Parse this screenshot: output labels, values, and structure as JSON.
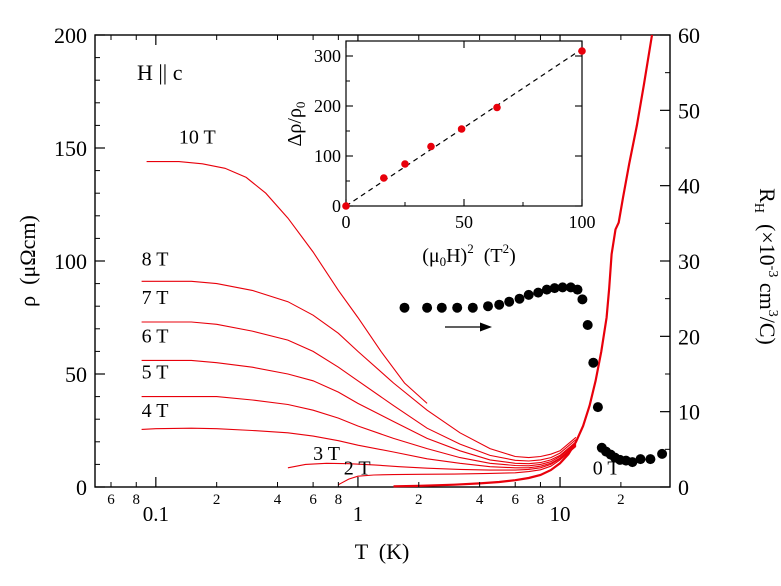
{
  "chart_data": {
    "type": "line",
    "condition": "H || c",
    "xlabel": "T  (K)",
    "ylabel": "ρ  (μΩcm)",
    "y2label": "R_H  (×10^-3 cm^3/C)",
    "xscale": "log",
    "xlim": [
      0.05,
      35
    ],
    "ylim": [
      0,
      200
    ],
    "y2lim": [
      0,
      60
    ],
    "xticks_major": [
      {
        "value": 0.1,
        "label": "0.1"
      },
      {
        "value": 1,
        "label": "1"
      },
      {
        "value": 10,
        "label": "10"
      }
    ],
    "xticks_minor": [
      {
        "value": 0.06,
        "label": "6"
      },
      {
        "value": 0.08,
        "label": "8"
      },
      {
        "value": 0.2,
        "label": "2"
      },
      {
        "value": 0.4,
        "label": "4"
      },
      {
        "value": 0.6,
        "label": "6"
      },
      {
        "value": 0.8,
        "label": "8"
      },
      {
        "value": 2,
        "label": "2"
      },
      {
        "value": 4,
        "label": "4"
      },
      {
        "value": 6,
        "label": "6"
      },
      {
        "value": 8,
        "label": "8"
      },
      {
        "value": 20,
        "label": "2"
      }
    ],
    "yticks": [
      0,
      50,
      100,
      150,
      200
    ],
    "y2ticks": [
      0,
      10,
      20,
      30,
      40,
      50,
      60
    ],
    "colors": {
      "resistivity": "#e8000b",
      "hall": "#000000",
      "inset_points": "#e8000b"
    },
    "resistivity_series": [
      {
        "name": "10 T",
        "label": "10 T",
        "label_at": [
          0.13,
          152
        ],
        "x": [
          0.09,
          0.1,
          0.13,
          0.17,
          0.22,
          0.28,
          0.35,
          0.45,
          0.6,
          0.8,
          1.0,
          1.3,
          1.7,
          2.2
        ],
        "y": [
          144,
          144,
          144,
          143,
          141,
          137,
          130,
          119,
          104,
          87,
          75,
          60,
          46,
          37
        ]
      },
      {
        "name": "8 T",
        "label": "8 T",
        "label_at": [
          0.085,
          98
        ],
        "x": [
          0.085,
          0.1,
          0.15,
          0.2,
          0.3,
          0.45,
          0.6,
          0.8,
          1.0,
          1.5,
          2.2,
          3.2,
          4.5,
          6,
          7,
          8,
          9,
          10,
          12
        ],
        "y": [
          91,
          91,
          91,
          90,
          87,
          82,
          76,
          68,
          60,
          46,
          34,
          24,
          17,
          13.5,
          13,
          13.5,
          14.5,
          16,
          22
        ]
      },
      {
        "name": "7 T",
        "label": "7 T",
        "label_at": [
          0.085,
          81
        ],
        "x": [
          0.085,
          0.1,
          0.15,
          0.2,
          0.3,
          0.45,
          0.6,
          0.8,
          1.0,
          1.5,
          2.2,
          3.2,
          4.5,
          6,
          7,
          8,
          9,
          10,
          12
        ],
        "y": [
          73,
          73,
          73,
          72,
          69,
          65,
          60,
          53,
          47,
          36,
          26,
          19,
          14,
          11.8,
          11.5,
          12,
          13,
          15,
          21
        ]
      },
      {
        "name": "6 T",
        "label": "6 T",
        "label_at": [
          0.085,
          64
        ],
        "x": [
          0.085,
          0.1,
          0.15,
          0.2,
          0.3,
          0.45,
          0.6,
          0.8,
          1.0,
          1.5,
          2.2,
          3.2,
          4.5,
          6,
          7,
          8,
          9,
          10,
          12
        ],
        "y": [
          56,
          56,
          56,
          55,
          53,
          50,
          47,
          42,
          37,
          29,
          21.5,
          16,
          12,
          10.5,
          10.3,
          10.8,
          12,
          14,
          20
        ]
      },
      {
        "name": "5 T",
        "label": "5 T",
        "label_at": [
          0.085,
          48
        ],
        "x": [
          0.085,
          0.1,
          0.15,
          0.2,
          0.3,
          0.45,
          0.6,
          0.8,
          1.0,
          1.5,
          2.2,
          3.2,
          4.5,
          6,
          7,
          8,
          9,
          10,
          12
        ],
        "y": [
          40,
          40,
          40,
          40,
          38.5,
          36.5,
          34,
          30.5,
          27,
          21.5,
          17,
          13,
          10.5,
          9.5,
          9.4,
          10,
          11.2,
          13.5,
          19.5
        ]
      },
      {
        "name": "4 T",
        "label": "4 T",
        "label_at": [
          0.085,
          31
        ],
        "x": [
          0.085,
          0.1,
          0.15,
          0.2,
          0.3,
          0.45,
          0.6,
          0.8,
          1.0,
          1.5,
          2.2,
          3.2,
          4.5,
          6,
          7,
          8,
          9,
          10,
          12
        ],
        "y": [
          25.5,
          25.8,
          26,
          25.8,
          25,
          24,
          22.5,
          20.5,
          18.5,
          15.5,
          12.5,
          10.5,
          9,
          8.5,
          8.5,
          9.2,
          10.5,
          12.8,
          19
        ]
      },
      {
        "name": "3 T",
        "label": "3 T",
        "label_at": [
          0.6,
          12
        ],
        "x": [
          0.45,
          0.55,
          0.7,
          0.9,
          1.2,
          1.6,
          2.2,
          3.2,
          4.5,
          6,
          7,
          8,
          9,
          10,
          12
        ],
        "y": [
          8.5,
          10,
          10.5,
          10.3,
          9.8,
          9,
          8.3,
          7.8,
          7.5,
          7.5,
          7.8,
          8.5,
          10,
          12.5,
          18.5
        ]
      },
      {
        "name": "2 T",
        "label": "2 T",
        "label_at": [
          0.85,
          5.5
        ],
        "x": [
          0.8,
          0.9,
          1.0,
          1.2,
          1.5,
          2.0,
          3.0,
          4.5,
          6,
          7,
          8,
          9,
          10,
          12
        ],
        "y": [
          1,
          3.5,
          4.8,
          5.3,
          5.5,
          5.6,
          5.7,
          6,
          6.3,
          6.8,
          7.6,
          9.2,
          12,
          18
        ]
      },
      {
        "name": "0 T",
        "label": "0 T",
        "label_at": [
          14.5,
          5.5
        ],
        "x": [
          1.5,
          2,
          3,
          4,
          5,
          6,
          7,
          8,
          9,
          10,
          11,
          12,
          13,
          14,
          15,
          16,
          17,
          17.5,
          18,
          18.8,
          19.5,
          20.5,
          22,
          24,
          26,
          28.5
        ],
        "y": [
          0.3,
          0.5,
          1,
          1.6,
          2.2,
          3,
          4,
          5.3,
          7.5,
          10.5,
          14.5,
          20,
          27,
          36,
          47,
          60,
          75,
          88,
          103,
          114,
          117,
          128,
          143,
          160,
          178,
          200
        ]
      }
    ],
    "hall_series": {
      "name": "R_H",
      "axis": "right",
      "x": [
        1.7,
        2.2,
        2.6,
        3.1,
        3.7,
        4.4,
        5.0,
        5.6,
        6.3,
        7.0,
        7.8,
        8.6,
        9.4,
        10.3,
        11.3,
        12.2,
        12.9,
        13.7,
        14.6,
        15.4,
        16.1,
        16.9,
        17.8,
        18.7,
        19.8,
        21.2,
        22.8,
        25.0,
        28.0,
        32.0
      ],
      "y": [
        23.8,
        23.8,
        23.8,
        23.8,
        23.8,
        24.0,
        24.2,
        24.6,
        25.0,
        25.5,
        25.8,
        26.2,
        26.4,
        26.5,
        26.5,
        26.2,
        24.9,
        21.5,
        16.5,
        10.6,
        5.2,
        4.7,
        4.3,
        3.9,
        3.6,
        3.5,
        3.3,
        3.7,
        3.7,
        4.4
      ]
    },
    "annotations": [
      {
        "type": "arrow",
        "from": [
          3.8,
          21.5
        ],
        "to": [
          6.6,
          21.5
        ],
        "axis": "right",
        "meaning": "points refer to right axis"
      }
    ],
    "inset": {
      "type": "scatter",
      "xlabel": "(μ0H)^2  (T^2)",
      "ylabel": "Δρ/ρ0",
      "xlim": [
        0,
        100
      ],
      "ylim": [
        0,
        330
      ],
      "xticks": [
        0,
        50,
        100
      ],
      "yticks": [
        0,
        100,
        200,
        300
      ],
      "x": [
        0,
        16,
        25,
        36,
        49,
        64,
        100
      ],
      "y": [
        0,
        56,
        84,
        119,
        154,
        197,
        310
      ],
      "fit_line": {
        "x": [
          0,
          100
        ],
        "y": [
          0,
          314
        ],
        "style": "dashed"
      }
    }
  }
}
